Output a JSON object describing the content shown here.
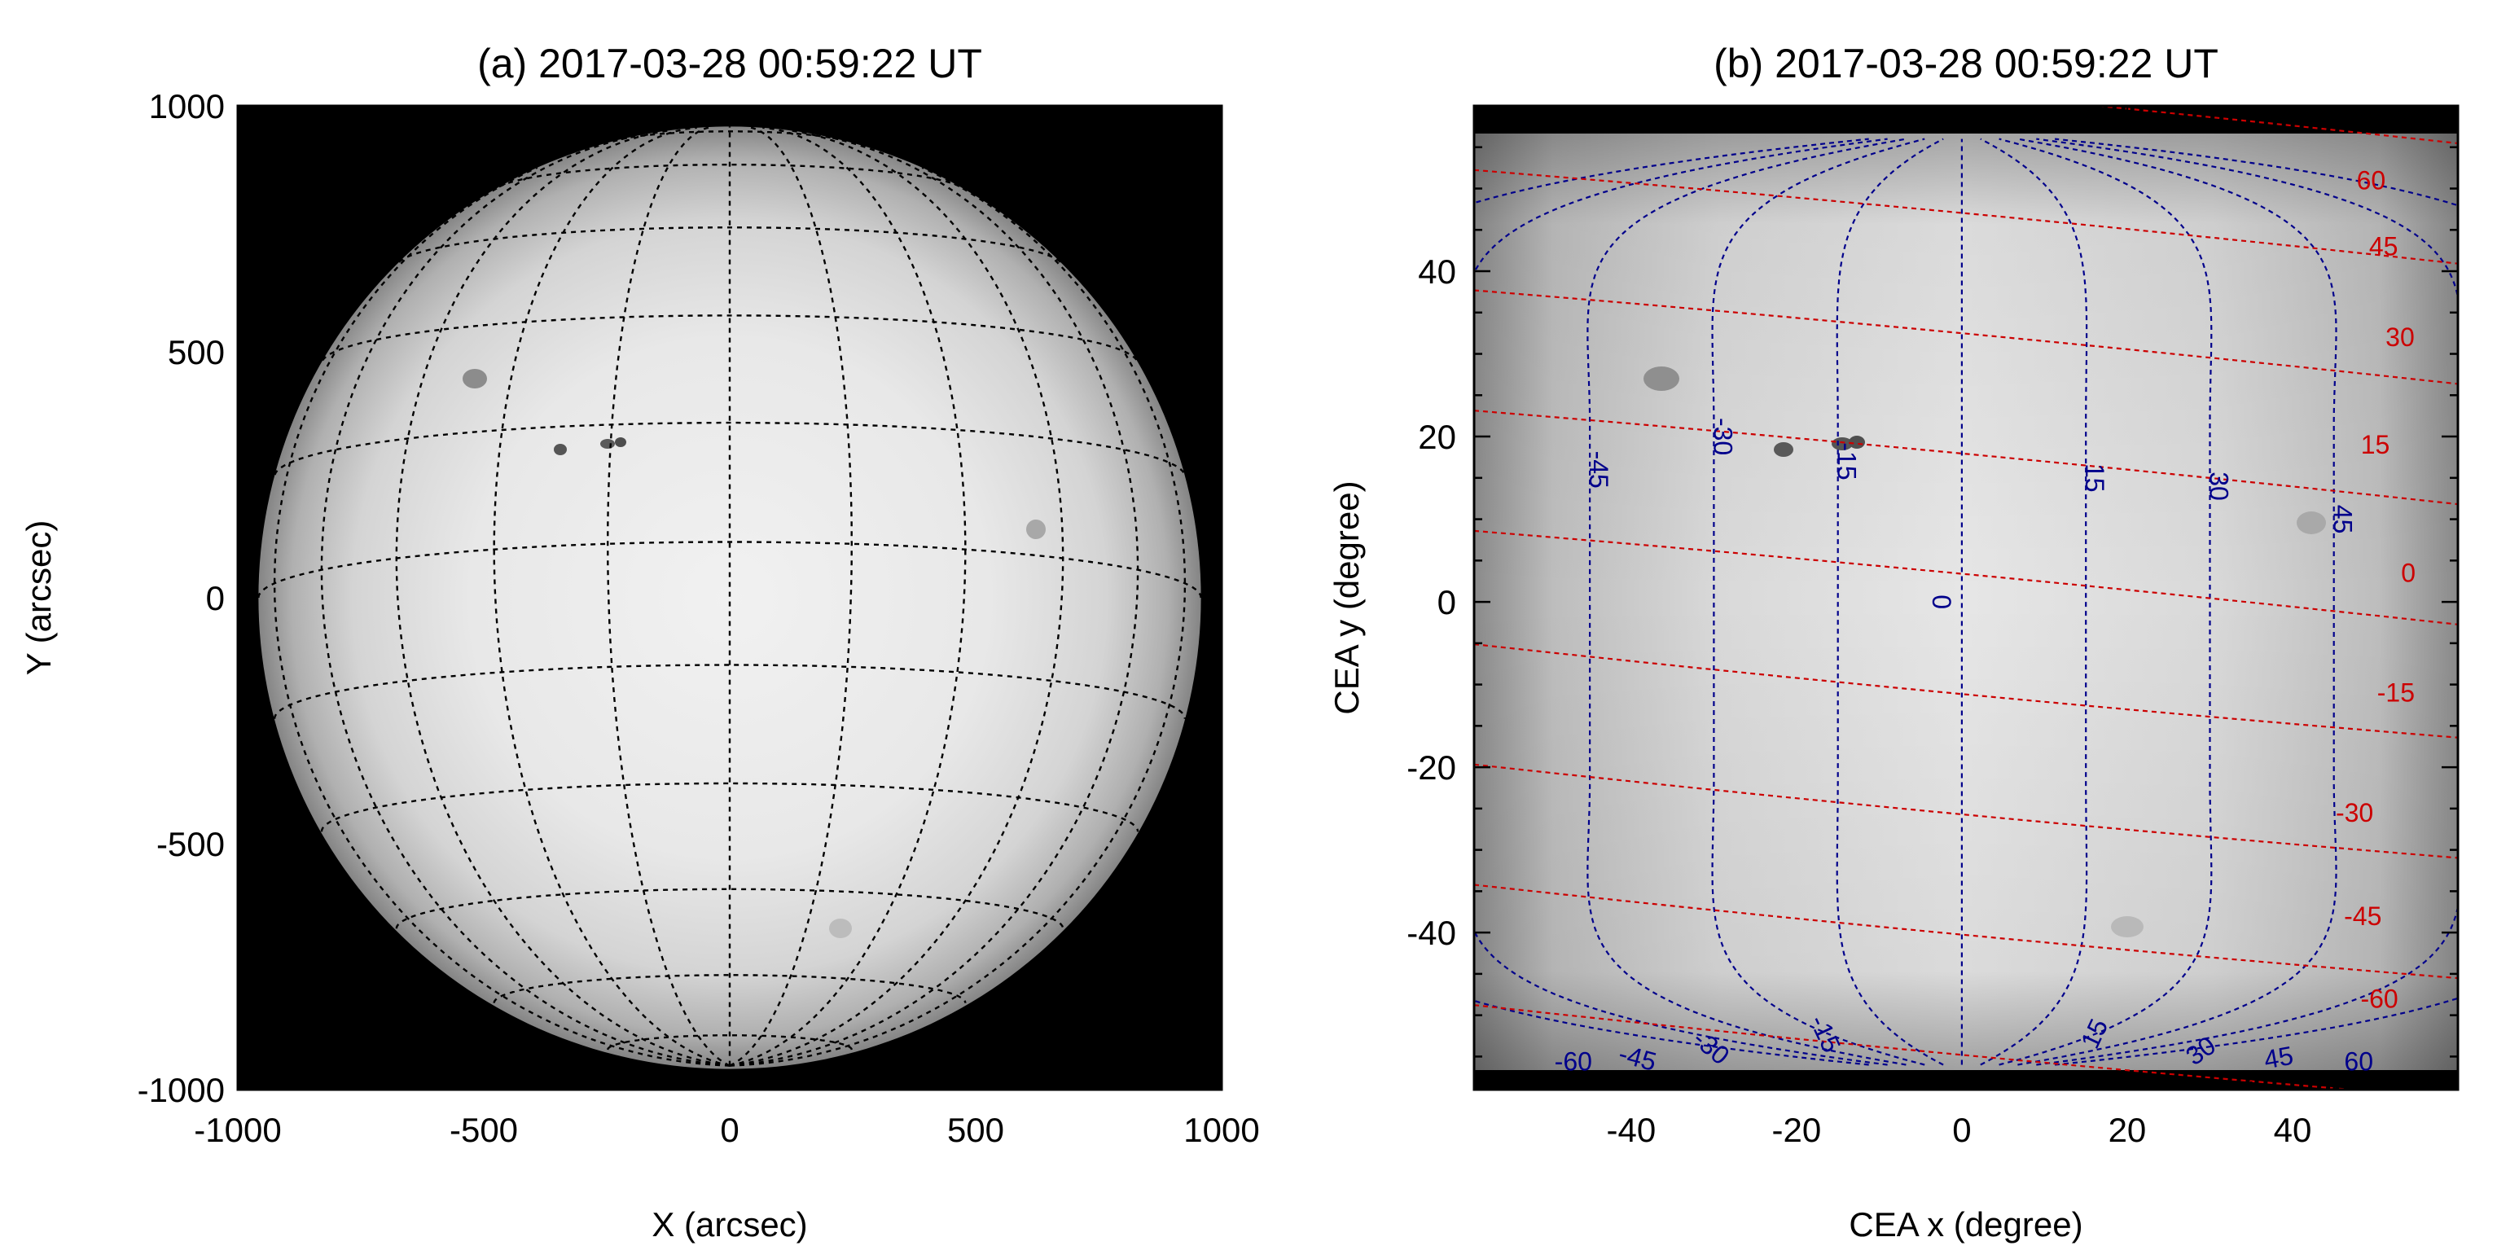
{
  "chart_data": [
    {
      "type": "image",
      "title": "(a) 2017-03-28 00:59:22 UT",
      "xlabel": "X (arcsec)",
      "ylabel": "Y (arcsec)",
      "xlim": [
        -1000,
        1000
      ],
      "ylim": [
        -1000,
        1000
      ],
      "xticks": [
        -1000,
        -500,
        0,
        500,
        1000
      ],
      "yticks": [
        1000,
        500,
        0,
        -500,
        -1000
      ],
      "solar_radius_arcsec": 958,
      "grid_latitudes": [
        -75,
        -60,
        -45,
        -30,
        -15,
        0,
        15,
        30,
        45,
        60,
        75
      ],
      "grid_longitudes": [
        -75,
        -60,
        -45,
        -30,
        -15,
        0,
        15,
        30,
        45,
        60,
        75
      ],
      "b0_degrees": -6.8,
      "colors": {
        "background": "#000000",
        "grid": "#000000"
      }
    },
    {
      "type": "image",
      "title": "(b) 2017-03-28 00:59:22 UT",
      "xlabel": "CEA x (degree)",
      "ylabel": "CEA y (degree)",
      "xlim": [
        -59,
        60
      ],
      "ylim": [
        -59,
        60
      ],
      "xticks": [
        -40,
        -20,
        0,
        20,
        40
      ],
      "yticks": [
        40,
        20,
        0,
        -20,
        -40
      ],
      "longitude_contours": [
        {
          "label": "-45",
          "value": -45
        },
        {
          "label": "-30",
          "value": -30
        },
        {
          "label": "-15",
          "value": -15
        },
        {
          "label": "0",
          "value": 0
        },
        {
          "label": "15",
          "value": 15
        },
        {
          "label": "30",
          "value": 30
        },
        {
          "label": "45",
          "value": 45
        },
        {
          "label": "-60",
          "value": -60
        },
        {
          "label": "60",
          "value": 60
        }
      ],
      "latitude_contours": [
        {
          "label": "60",
          "value": 60
        },
        {
          "label": "45",
          "value": 45
        },
        {
          "label": "30",
          "value": 30
        },
        {
          "label": "15",
          "value": 15
        },
        {
          "label": "0",
          "value": 0
        },
        {
          "label": "-15",
          "value": -15
        },
        {
          "label": "-30",
          "value": -30
        },
        {
          "label": "-45",
          "value": -45
        },
        {
          "label": "-60",
          "value": -60
        }
      ],
      "bottom_longitude_labels": [
        {
          "label": "-60",
          "value": -60
        },
        {
          "label": "-45",
          "value": -45
        },
        {
          "label": "-30",
          "value": -30
        },
        {
          "label": "-15",
          "value": -15
        },
        {
          "label": "15",
          "value": 15
        },
        {
          "label": "30",
          "value": 30
        },
        {
          "label": "45",
          "value": 45
        },
        {
          "label": "60",
          "value": 60
        }
      ],
      "colors": {
        "longitude": "#00008b",
        "latitude": "#cc0000"
      }
    }
  ]
}
